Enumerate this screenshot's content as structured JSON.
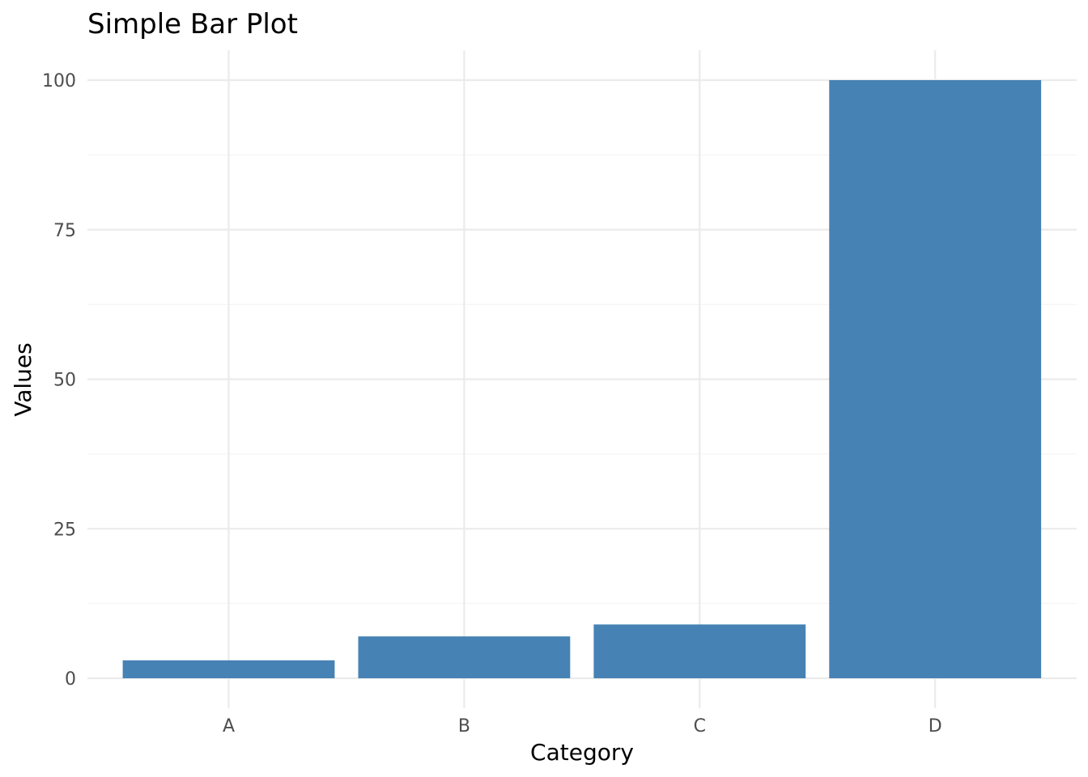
{
  "chart_data": {
    "type": "bar",
    "title": "Simple Bar Plot",
    "xlabel": "Category",
    "ylabel": "Values",
    "categories": [
      "A",
      "B",
      "C",
      "D"
    ],
    "values": [
      3,
      7,
      9,
      100
    ],
    "ylim": [
      0,
      105
    ],
    "yticks": [
      "0",
      "25",
      "50",
      "75",
      "100"
    ],
    "grid": true,
    "legend": "none",
    "bar_color": "#4682B4",
    "grid_color": "#EBEBEB"
  }
}
